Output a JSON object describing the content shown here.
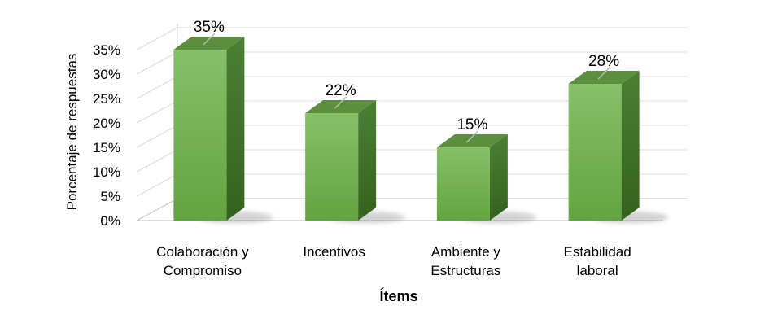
{
  "chart_data": {
    "type": "bar",
    "categories": [
      [
        "Colaboración y",
        "Compromiso"
      ],
      [
        "Incentivos"
      ],
      [
        "Ambiente y",
        "Estructuras"
      ],
      [
        "Estabilidad",
        "laboral"
      ]
    ],
    "values": [
      35,
      22,
      15,
      28
    ],
    "data_labels": [
      "35%",
      "22%",
      "15%",
      "28%"
    ],
    "y_ticks": [
      "0%",
      "5%",
      "10%",
      "15%",
      "20%",
      "25%",
      "30%",
      "35%"
    ],
    "ylim": [
      0,
      35
    ],
    "xlabel": "Ítems",
    "ylabel": "Porcentaje de respuestas",
    "grid": true,
    "style": "3d-column",
    "colors": {
      "bar_front": "#6aa84f",
      "bar_front_light": "#86c06a",
      "bar_side": "#3f6f27",
      "bar_top": "#5b8f3e",
      "grid": "#d9d9d9",
      "back_wall_line": "#d0d0d0"
    }
  }
}
